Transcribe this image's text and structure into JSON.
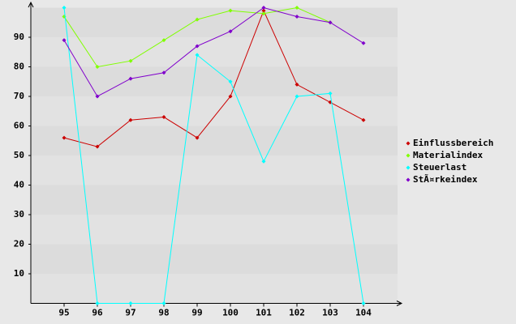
{
  "chart_data": {
    "type": "line",
    "categories": [
      "95",
      "96",
      "97",
      "98",
      "99",
      "100",
      "101",
      "102",
      "103",
      "104"
    ],
    "series": [
      {
        "name": "Einflussbereich",
        "color": "#cc0000",
        "values": [
          56,
          53,
          62,
          63,
          56,
          70,
          99,
          74,
          68,
          62
        ]
      },
      {
        "name": "Materialindex",
        "color": "#80ff00",
        "values": [
          97,
          80,
          82,
          89,
          96,
          99,
          98,
          100,
          95,
          null
        ]
      },
      {
        "name": "Steuerlast",
        "color": "#00ffff",
        "values": [
          100,
          0,
          0,
          0,
          84,
          75,
          48,
          70,
          71,
          0
        ]
      },
      {
        "name": "StÃ¤rkeindex",
        "color": "#8000cc",
        "values": [
          89,
          70,
          76,
          78,
          87,
          92,
          100,
          97,
          95,
          88
        ]
      }
    ],
    "ylim": [
      0,
      100
    ],
    "yticks": [
      10,
      20,
      30,
      40,
      50,
      60,
      70,
      80,
      90
    ],
    "grid": true,
    "legend": "right"
  }
}
